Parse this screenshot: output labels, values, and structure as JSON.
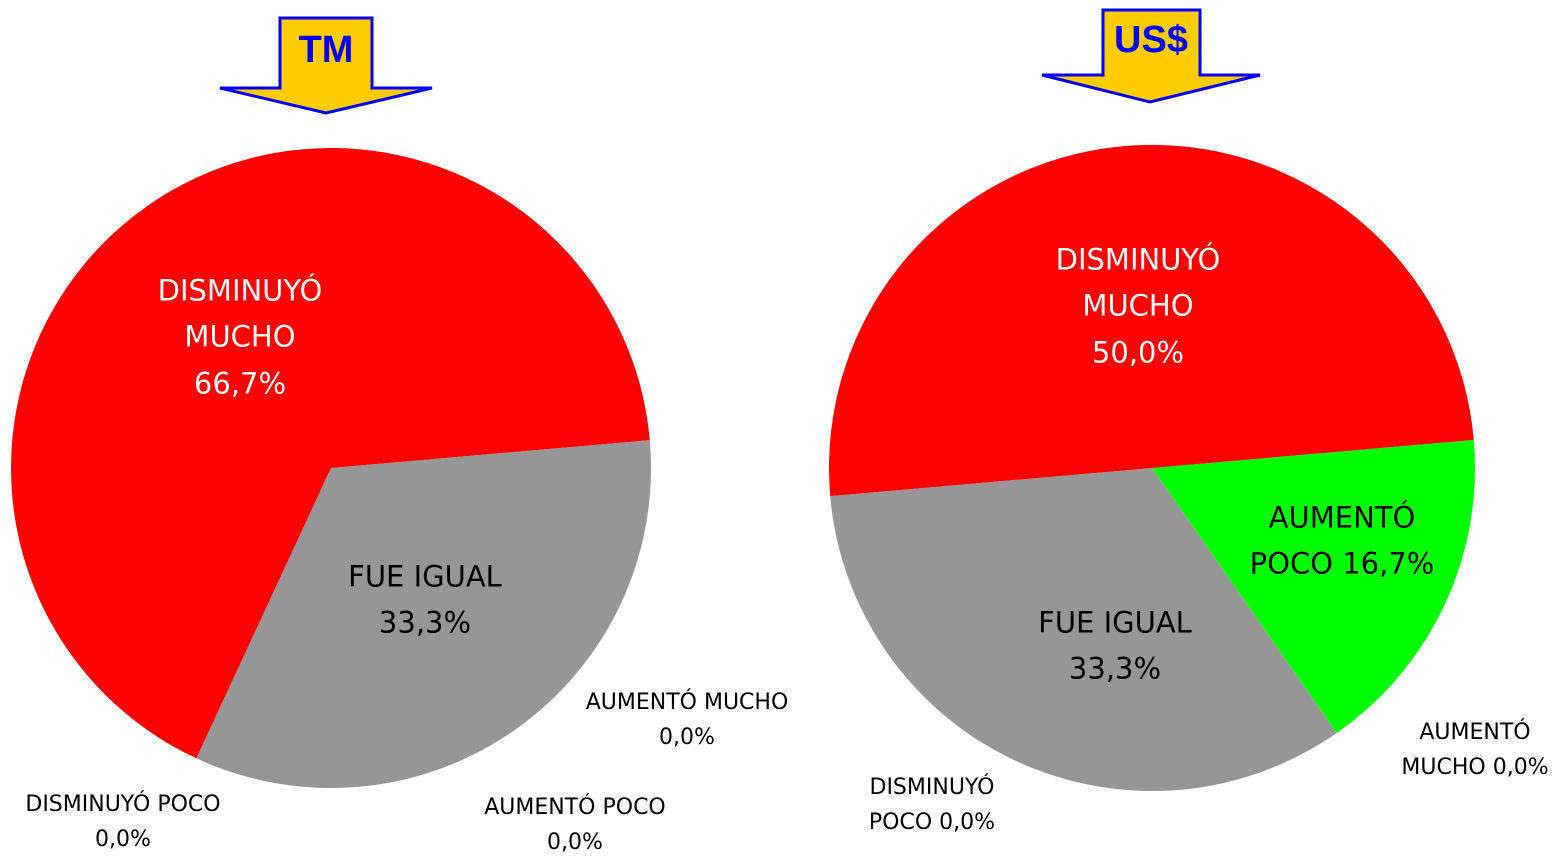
{
  "chart_data": [
    {
      "type": "pie",
      "title": "TM",
      "categories": [
        "AUMENTÓ MUCHO",
        "AUMENTÓ POCO",
        "FUE IGUAL",
        "DISMINUYÓ POCO",
        "DISMINUYÓ MUCHO"
      ],
      "values": [
        0,
        0,
        33.3,
        0,
        66.7
      ],
      "value_labels": [
        "0,0%",
        "0,0%",
        "33,3%",
        "0,0%",
        "66,7%"
      ],
      "colors": [
        "#0000ff",
        "#00ff00",
        "#969696",
        "#ff9900",
        "#ff0000"
      ]
    },
    {
      "type": "pie",
      "title": "US$",
      "categories": [
        "AUMENTÓ MUCHO",
        "AUMENTÓ POCO",
        "FUE IGUAL",
        "DISMINUYÓ POCO",
        "DISMINUYÓ MUCHO"
      ],
      "values": [
        0,
        16.7,
        33.3,
        0,
        50
      ],
      "value_labels": [
        "0,0%",
        "16,7%",
        "33,3%",
        "0,0%",
        "50,0%"
      ],
      "colors": [
        "#0000ff",
        "#00ff00",
        "#969696",
        "#ff9900",
        "#ff0000"
      ]
    }
  ]
}
